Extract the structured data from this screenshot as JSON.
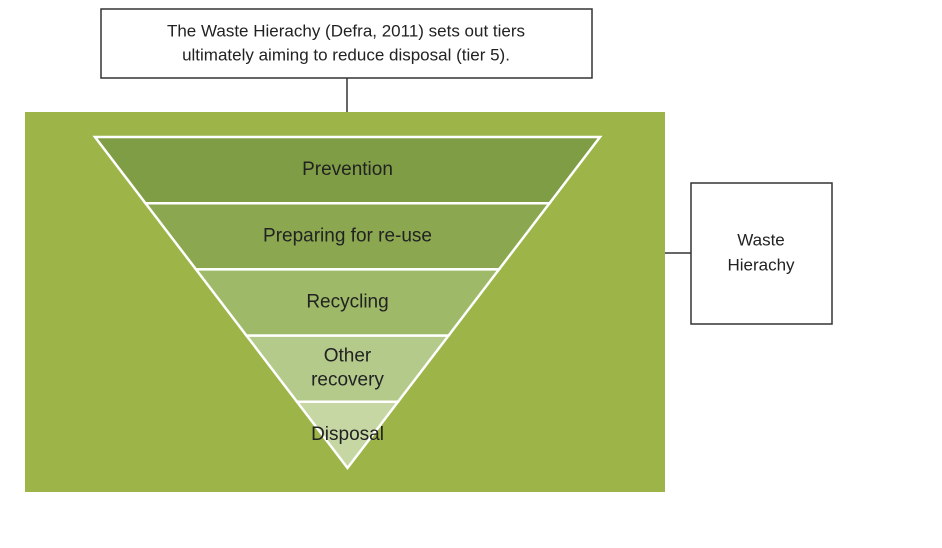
{
  "callout": {
    "lines": [
      "The Waste Hierachy (Defra, 2011) sets out tiers",
      "ultimately aiming to reduce disposal (tier 5)."
    ]
  },
  "side_label": {
    "lines": [
      "Waste",
      "Hierachy"
    ]
  },
  "tiers": [
    {
      "lines": [
        "Prevention"
      ]
    },
    {
      "lines": [
        "Preparing for re-use"
      ]
    },
    {
      "lines": [
        "Recycling"
      ]
    },
    {
      "lines": [
        "Other",
        "recovery"
      ]
    },
    {
      "lines": [
        "Disposal"
      ]
    }
  ]
}
